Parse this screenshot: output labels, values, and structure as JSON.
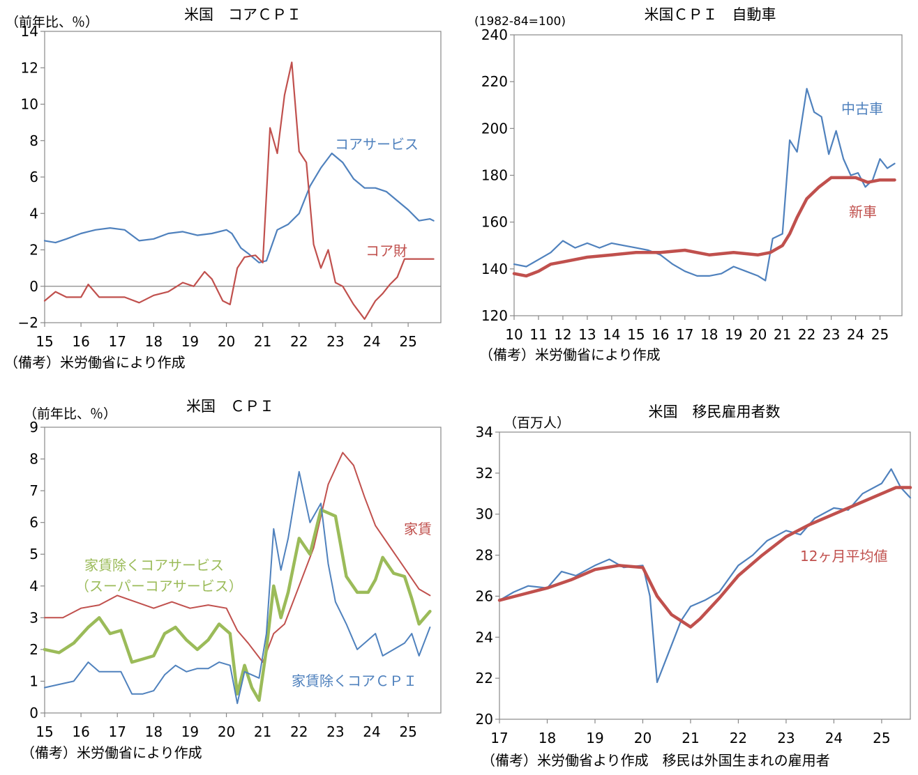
{
  "colors": {
    "blue": "#4f81bd",
    "red": "#c0504d",
    "green": "#9bbb59",
    "axis": "#888888"
  },
  "chart_data": [
    {
      "type": "line",
      "title": "米国　コアＣＰＩ",
      "unit_label": "（前年比、％）",
      "note": "（備考）米労働省により作成",
      "ylim": [
        -2,
        14
      ],
      "yticks": [
        -2,
        0,
        2,
        4,
        6,
        8,
        10,
        12,
        14
      ],
      "ytick_labels": [
        "−2",
        "0",
        "2",
        "4",
        "6",
        "8",
        "10",
        "12",
        "14"
      ],
      "xlim": [
        2015,
        2025.9
      ],
      "xticks": [
        2015,
        2016,
        2017,
        2018,
        2019,
        2020,
        2021,
        2022,
        2023,
        2024,
        2025
      ],
      "xtick_labels": [
        "15",
        "16",
        "17",
        "18",
        "19",
        "20",
        "21",
        "22",
        "23",
        "24",
        "25"
      ],
      "zero_line": true,
      "series": [
        {
          "name": "コアサービス",
          "color": "blue",
          "width": 2.2,
          "x": [
            2015,
            2015.3,
            2015.6,
            2016,
            2016.4,
            2016.8,
            2017.2,
            2017.6,
            2018,
            2018.4,
            2018.8,
            2019.2,
            2019.6,
            2020,
            2020.15,
            2020.4,
            2020.6,
            2020.9,
            2021.1,
            2021.4,
            2021.7,
            2022,
            2022.3,
            2022.6,
            2022.9,
            2023.2,
            2023.5,
            2023.8,
            2024.1,
            2024.4,
            2024.7,
            2025,
            2025.3,
            2025.6,
            2025.7
          ],
          "y": [
            2.5,
            2.4,
            2.6,
            2.9,
            3.1,
            3.2,
            3.1,
            2.5,
            2.6,
            2.9,
            3.0,
            2.8,
            2.9,
            3.1,
            2.9,
            2.1,
            1.8,
            1.3,
            1.4,
            3.1,
            3.4,
            4.0,
            5.5,
            6.5,
            7.3,
            6.8,
            5.9,
            5.4,
            5.4,
            5.2,
            4.7,
            4.2,
            3.6,
            3.7,
            3.6
          ]
        },
        {
          "name": "コア財",
          "color": "red",
          "width": 2.2,
          "x": [
            2015,
            2015.3,
            2015.6,
            2016,
            2016.2,
            2016.5,
            2016.8,
            2017.2,
            2017.6,
            2018,
            2018.4,
            2018.8,
            2019.1,
            2019.4,
            2019.6,
            2019.9,
            2020.1,
            2020.3,
            2020.5,
            2020.8,
            2021.0,
            2021.2,
            2021.4,
            2021.6,
            2021.8,
            2022.0,
            2022.2,
            2022.4,
            2022.6,
            2022.8,
            2023.0,
            2023.2,
            2023.5,
            2023.8,
            2024.1,
            2024.3,
            2024.5,
            2024.7,
            2024.9,
            2025.1,
            2025.3,
            2025.5,
            2025.7
          ],
          "y": [
            -0.8,
            -0.3,
            -0.6,
            -0.6,
            0.1,
            -0.6,
            -0.6,
            -0.6,
            -0.9,
            -0.5,
            -0.3,
            0.2,
            0.0,
            0.8,
            0.4,
            -0.8,
            -1.0,
            1.0,
            1.6,
            1.7,
            1.3,
            8.7,
            7.3,
            10.5,
            12.3,
            7.4,
            6.8,
            2.3,
            1.0,
            2.0,
            0.2,
            0.0,
            -1.0,
            -1.8,
            -0.8,
            -0.4,
            0.1,
            0.5,
            1.5,
            1.5,
            1.5,
            1.5,
            1.5
          ]
        }
      ],
      "labels": [
        {
          "text": "コアサービス",
          "series": 0
        },
        {
          "text": "コア財",
          "series": 1
        }
      ]
    },
    {
      "type": "line",
      "title": "米国ＣＰＩ　自動車",
      "unit_label": "(1982-84=100)",
      "note": "（備考）米労働省により作成",
      "ylim": [
        120,
        240
      ],
      "yticks": [
        120,
        140,
        160,
        180,
        200,
        220,
        240
      ],
      "ytick_labels": [
        "120",
        "140",
        "160",
        "180",
        "200",
        "220",
        "240"
      ],
      "xlim": [
        2010,
        2025.9
      ],
      "xticks": [
        2010,
        2011,
        2012,
        2013,
        2014,
        2015,
        2016,
        2017,
        2018,
        2019,
        2020,
        2021,
        2022,
        2023,
        2024,
        2025
      ],
      "xtick_labels": [
        "10",
        "11",
        "12",
        "13",
        "14",
        "15",
        "16",
        "17",
        "18",
        "19",
        "20",
        "21",
        "22",
        "23",
        "24",
        "25"
      ],
      "series": [
        {
          "name": "中古車",
          "color": "blue",
          "width": 2.2,
          "x": [
            2010,
            2010.5,
            2011,
            2011.5,
            2012,
            2012.5,
            2013,
            2013.5,
            2014,
            2014.5,
            2015,
            2015.5,
            2016,
            2016.5,
            2017,
            2017.5,
            2018,
            2018.5,
            2019,
            2019.5,
            2020,
            2020.3,
            2020.6,
            2021,
            2021.3,
            2021.6,
            2022,
            2022.3,
            2022.6,
            2022.9,
            2023.2,
            2023.5,
            2023.8,
            2024.1,
            2024.4,
            2024.7,
            2025,
            2025.3,
            2025.6
          ],
          "y": [
            142,
            141,
            144,
            147,
            152,
            149,
            151,
            149,
            151,
            150,
            149,
            148,
            146,
            142,
            139,
            137,
            137,
            138,
            141,
            139,
            137,
            135,
            153,
            155,
            195,
            190,
            217,
            207,
            205,
            189,
            199,
            187,
            180,
            181,
            175,
            178,
            187,
            183,
            185
          ]
        },
        {
          "name": "新車",
          "color": "red",
          "width": 4.5,
          "x": [
            2010,
            2010.5,
            2011,
            2011.5,
            2012,
            2013,
            2014,
            2015,
            2016,
            2017,
            2018,
            2019,
            2020,
            2020.5,
            2021,
            2021.3,
            2021.6,
            2022,
            2022.5,
            2023,
            2023.5,
            2024,
            2024.5,
            2025,
            2025.6
          ],
          "y": [
            138,
            137,
            139,
            142,
            143,
            145,
            146,
            147,
            147,
            148,
            146,
            147,
            146,
            147,
            150,
            155,
            162,
            170,
            175,
            179,
            179,
            179,
            177,
            178,
            178
          ]
        }
      ],
      "labels": [
        {
          "text": "中古車",
          "series": 0
        },
        {
          "text": "新車",
          "series": 1
        }
      ]
    },
    {
      "type": "line",
      "title": "米国　ＣＰＩ",
      "unit_label": "（前年比、％）",
      "note": "（備考）米労働省により作成",
      "ylim": [
        0,
        9
      ],
      "yticks": [
        0,
        1,
        2,
        3,
        4,
        5,
        6,
        7,
        8,
        9
      ],
      "ytick_labels": [
        "0",
        "1",
        "2",
        "3",
        "4",
        "5",
        "6",
        "7",
        "8",
        "9"
      ],
      "xlim": [
        2015,
        2025.9
      ],
      "xticks": [
        2015,
        2016,
        2017,
        2018,
        2019,
        2020,
        2021,
        2022,
        2023,
        2024,
        2025
      ],
      "xtick_labels": [
        "15",
        "16",
        "17",
        "18",
        "19",
        "20",
        "21",
        "22",
        "23",
        "24",
        "25"
      ],
      "series": [
        {
          "name": "家賃",
          "color": "red",
          "width": 2.0,
          "x": [
            2015,
            2015.5,
            2016,
            2016.5,
            2017,
            2017.5,
            2018,
            2018.5,
            2019,
            2019.5,
            2020,
            2020.3,
            2020.6,
            2021,
            2021.3,
            2021.6,
            2022,
            2022.4,
            2022.8,
            2023.2,
            2023.5,
            2023.8,
            2024.1,
            2024.4,
            2024.7,
            2025,
            2025.3,
            2025.6
          ],
          "y": [
            3.0,
            3.0,
            3.3,
            3.4,
            3.7,
            3.5,
            3.3,
            3.5,
            3.3,
            3.4,
            3.3,
            2.6,
            2.2,
            1.6,
            2.5,
            2.8,
            4.0,
            5.2,
            7.2,
            8.2,
            7.8,
            6.8,
            5.9,
            5.4,
            4.9,
            4.4,
            3.9,
            3.7
          ]
        },
        {
          "name": "家賃除くコアサービス",
          "color": "green",
          "width": 4.5,
          "x": [
            2015,
            2015.4,
            2015.8,
            2016.2,
            2016.5,
            2016.8,
            2017.1,
            2017.4,
            2017.7,
            2018.0,
            2018.3,
            2018.6,
            2018.9,
            2019.2,
            2019.5,
            2019.8,
            2020.1,
            2020.3,
            2020.5,
            2020.7,
            2020.9,
            2021.1,
            2021.3,
            2021.5,
            2021.7,
            2022.0,
            2022.3,
            2022.6,
            2022.8,
            2023.0,
            2023.3,
            2023.6,
            2023.9,
            2024.1,
            2024.3,
            2024.6,
            2024.9,
            2025.1,
            2025.3,
            2025.6
          ],
          "y": [
            2.0,
            1.9,
            2.2,
            2.7,
            3.0,
            2.5,
            2.6,
            1.6,
            1.7,
            1.8,
            2.5,
            2.7,
            2.3,
            2.0,
            2.3,
            2.8,
            2.5,
            0.6,
            1.5,
            0.8,
            0.4,
            2.0,
            4.0,
            3.0,
            3.8,
            5.5,
            5.0,
            6.4,
            6.3,
            6.2,
            4.3,
            3.8,
            3.8,
            4.2,
            4.9,
            4.4,
            4.3,
            3.6,
            2.8,
            3.2
          ]
        },
        {
          "name": "家賃除くコアＣＰＩ",
          "color": "blue",
          "width": 2.0,
          "x": [
            2015,
            2015.4,
            2015.8,
            2016.2,
            2016.5,
            2016.8,
            2017.1,
            2017.4,
            2017.7,
            2018.0,
            2018.3,
            2018.6,
            2018.9,
            2019.2,
            2019.5,
            2019.8,
            2020.1,
            2020.3,
            2020.5,
            2020.7,
            2020.9,
            2021.1,
            2021.3,
            2021.5,
            2021.7,
            2022.0,
            2022.3,
            2022.6,
            2022.8,
            2023.0,
            2023.3,
            2023.6,
            2023.9,
            2024.1,
            2024.3,
            2024.6,
            2024.9,
            2025.1,
            2025.3,
            2025.6
          ],
          "y": [
            0.8,
            0.9,
            1.0,
            1.6,
            1.3,
            1.3,
            1.3,
            0.6,
            0.6,
            0.7,
            1.2,
            1.5,
            1.3,
            1.4,
            1.4,
            1.6,
            1.5,
            0.3,
            1.3,
            1.2,
            1.1,
            2.5,
            5.8,
            4.5,
            5.5,
            7.6,
            6.0,
            6.6,
            4.7,
            3.5,
            2.8,
            2.0,
            2.3,
            2.5,
            1.8,
            2.0,
            2.2,
            2.5,
            1.8,
            2.7
          ]
        }
      ],
      "labels": [
        {
          "text": "家賃",
          "series": 0
        },
        {
          "text": "家賃除くコアサービス",
          "series": 1
        },
        {
          "text": "（スーパーコアサービス）",
          "series": 1
        },
        {
          "text": "家賃除くコアＣＰＩ",
          "series": 2
        }
      ]
    },
    {
      "type": "line",
      "title": "米国　移民雇用者数",
      "unit_label": "（百万人）",
      "note": "（備考）米労働省より作成　移民は外国生まれの雇用者",
      "ylim": [
        20,
        34
      ],
      "yticks": [
        20,
        22,
        24,
        26,
        28,
        30,
        32,
        34
      ],
      "ytick_labels": [
        "20",
        "22",
        "24",
        "26",
        "28",
        "30",
        "32",
        "34"
      ],
      "xlim": [
        2017,
        2025.6
      ],
      "xticks": [
        2017,
        2018,
        2019,
        2020,
        2021,
        2022,
        2023,
        2024,
        2025
      ],
      "xtick_labels": [
        "17",
        "18",
        "19",
        "20",
        "21",
        "22",
        "23",
        "24",
        "25"
      ],
      "series": [
        {
          "name": "移民雇用者数",
          "color": "blue",
          "width": 2.2,
          "x": [
            2017,
            2017.3,
            2017.6,
            2018,
            2018.3,
            2018.6,
            2019,
            2019.3,
            2019.6,
            2020,
            2020.15,
            2020.3,
            2020.5,
            2020.8,
            2021,
            2021.3,
            2021.6,
            2022,
            2022.3,
            2022.6,
            2023,
            2023.3,
            2023.6,
            2024,
            2024.3,
            2024.6,
            2025,
            2025.2,
            2025.4,
            2025.6
          ],
          "y": [
            25.8,
            26.2,
            26.5,
            26.4,
            27.2,
            27.0,
            27.5,
            27.8,
            27.4,
            27.5,
            26.0,
            21.8,
            23.0,
            24.8,
            25.5,
            25.8,
            26.2,
            27.5,
            28.0,
            28.7,
            29.2,
            29.0,
            29.8,
            30.3,
            30.2,
            31.0,
            31.5,
            32.2,
            31.3,
            30.8
          ]
        },
        {
          "name": "12ヶ月平均値",
          "color": "red",
          "width": 4.5,
          "x": [
            2017,
            2017.5,
            2018,
            2018.5,
            2019,
            2019.5,
            2020,
            2020.3,
            2020.6,
            2020.8,
            2021.0,
            2021.2,
            2021.6,
            2022,
            2022.5,
            2023,
            2023.5,
            2024,
            2024.5,
            2025,
            2025.3,
            2025.6
          ],
          "y": [
            25.8,
            26.1,
            26.4,
            26.8,
            27.3,
            27.5,
            27.4,
            26.0,
            25.1,
            24.8,
            24.5,
            24.9,
            25.9,
            27.0,
            28.0,
            28.9,
            29.5,
            30.0,
            30.5,
            31.0,
            31.3,
            31.3
          ]
        }
      ],
      "labels": [
        {
          "text": "12ヶ月平均値",
          "series": 1
        }
      ]
    }
  ]
}
